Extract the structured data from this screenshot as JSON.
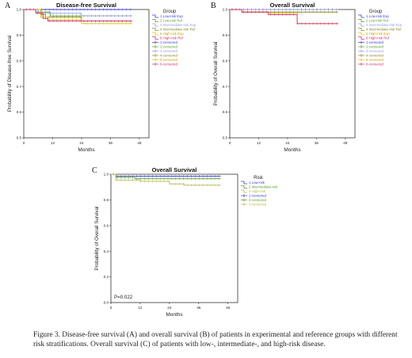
{
  "figure_caption": "Figure 3. Disease-free survival (A) and overall survival (B) of patients in experimental and reference groups with different risk stratifications. Overall survival (C) of patients with low-, intermediate-, and high-risk disease.",
  "colors": {
    "low_exp": "#3b3bd6",
    "low_ref": "#5aa02c",
    "intermediate_exp": "#9a9ae6",
    "intermediate_ref": "#8a8a2a",
    "high_exp": "#e6c200",
    "high_ref": "#d23278",
    "risk_low": "#3b3bd6",
    "risk_intermediate": "#5aa02c",
    "risk_high": "#b8b850"
  },
  "chart_data": [
    {
      "panel_label": "A",
      "type": "line",
      "title": "Disease-free Survival",
      "xlabel": "Months",
      "ylabel": "Probability of Disease-free Survival",
      "x_ticks": [
        "0",
        "12",
        "24",
        "36",
        "48"
      ],
      "y_ticks": [
        "0.5",
        "0.6",
        "0.7",
        "0.8",
        "0.9",
        "1.0"
      ],
      "xlim": [
        0,
        52
      ],
      "ylim": [
        0.5,
        1.0
      ],
      "legend_title": "Group",
      "legend_position": "right",
      "legend": [
        "1 Low-risk Exp",
        "2 Low-risk Ref",
        "3 Intermediate-risk Exp",
        "4 Intermediate-risk Ref",
        "5 High-risk Exp",
        "6 High-risk Ref",
        "1-censored",
        "2-censored",
        "3-censored",
        "4-censored",
        "5-censored",
        "6-censored"
      ],
      "series": [
        {
          "name": "1 Low-risk Exp",
          "color_key": "low_exp",
          "steps": [
            [
              0,
              1.0
            ],
            [
              45,
              1.0
            ]
          ]
        },
        {
          "name": "2 Low-risk Ref",
          "color_key": "low_ref",
          "steps": [
            [
              0,
              1.0
            ],
            [
              5,
              0.99
            ],
            [
              11,
              0.975
            ],
            [
              45,
              0.975
            ]
          ]
        },
        {
          "name": "3 Intermediate-risk Exp",
          "color_key": "intermediate_exp",
          "steps": [
            [
              0,
              1.0
            ],
            [
              6,
              0.985
            ],
            [
              24,
              0.975
            ],
            [
              45,
              0.975
            ]
          ]
        },
        {
          "name": "4 Intermediate-risk Ref",
          "color_key": "intermediate_ref",
          "steps": [
            [
              0,
              1.0
            ],
            [
              7,
              0.98
            ],
            [
              9,
              0.97
            ],
            [
              24,
              0.955
            ],
            [
              45,
              0.955
            ]
          ]
        },
        {
          "name": "5 High-risk Exp",
          "color_key": "high_exp",
          "steps": [
            [
              0,
              1.0
            ],
            [
              7,
              0.97
            ],
            [
              10,
              0.96
            ],
            [
              24,
              0.945
            ],
            [
              45,
              0.945
            ]
          ]
        },
        {
          "name": "6 High-risk Ref",
          "color_key": "high_ref",
          "steps": [
            [
              0,
              1.0
            ],
            [
              5,
              0.985
            ],
            [
              8,
              0.965
            ],
            [
              10,
              0.955
            ],
            [
              45,
              0.955
            ]
          ]
        }
      ]
    },
    {
      "panel_label": "B",
      "type": "line",
      "title": "Overall Survival",
      "xlabel": "Months",
      "ylabel": "Probability of Overall Survival",
      "x_ticks": [
        "0",
        "12",
        "24",
        "36",
        "48"
      ],
      "y_ticks": [
        "0.5",
        "0.6",
        "0.7",
        "0.8",
        "0.9",
        "1.0"
      ],
      "xlim": [
        0,
        52
      ],
      "ylim": [
        0.5,
        1.0
      ],
      "legend_title": "Group",
      "legend_position": "right",
      "legend": [
        "1 Low-risk Exp",
        "2 Low-risk Ref",
        "3 Intermediate-risk Exp",
        "4 Intermediate-risk Ref",
        "5 High-risk Exp",
        "6 High-risk Ref",
        "1-censored",
        "2-censored",
        "3-censored",
        "4-censored",
        "5-censored",
        "6-censored"
      ],
      "series": [
        {
          "name": "1 Low-risk Exp",
          "color_key": "low_exp",
          "steps": [
            [
              0,
              1.0
            ],
            [
              45,
              1.0
            ]
          ]
        },
        {
          "name": "2 Low-risk Ref",
          "color_key": "low_ref",
          "steps": [
            [
              0,
              1.0
            ],
            [
              45,
              1.0
            ]
          ]
        },
        {
          "name": "3 Intermediate-risk Exp",
          "color_key": "intermediate_exp",
          "steps": [
            [
              0,
              1.0
            ],
            [
              45,
              1.0
            ]
          ]
        },
        {
          "name": "4 Intermediate-risk Ref",
          "color_key": "intermediate_ref",
          "steps": [
            [
              0,
              1.0
            ],
            [
              5,
              0.99
            ],
            [
              45,
              0.99
            ]
          ]
        },
        {
          "name": "5 High-risk Exp",
          "color_key": "high_exp",
          "steps": [
            [
              0,
              1.0
            ],
            [
              5,
              0.99
            ],
            [
              16,
              0.985
            ],
            [
              28,
              0.945
            ],
            [
              45,
              0.945
            ]
          ]
        },
        {
          "name": "6 High-risk Ref",
          "color_key": "high_ref",
          "steps": [
            [
              0,
              1.0
            ],
            [
              5,
              0.99
            ],
            [
              16,
              0.98
            ],
            [
              28,
              0.945
            ],
            [
              45,
              0.945
            ]
          ]
        }
      ]
    },
    {
      "panel_label": "C",
      "type": "line",
      "title": "Overall Survival",
      "xlabel": "Months",
      "ylabel": "Probability of Overall Survival",
      "x_ticks": [
        "0",
        "12",
        "24",
        "36",
        "48"
      ],
      "y_ticks": [
        "0.0",
        "0.2",
        "0.4",
        "0.6",
        "0.8",
        "1.0"
      ],
      "xlim": [
        0,
        52
      ],
      "ylim": [
        0.0,
        1.0
      ],
      "legend_title": "Risk",
      "legend_position": "right",
      "legend": [
        "1 Low-risk",
        "2 Intermediate-risk",
        "3 High-risk",
        "1-censored",
        "2-censored",
        "3-censored"
      ],
      "annotation": "P=0.022",
      "series": [
        {
          "name": "1 Low-risk",
          "color_key": "risk_low",
          "steps": [
            [
              0,
              1.0
            ],
            [
              2,
              0.985
            ],
            [
              45,
              0.985
            ]
          ]
        },
        {
          "name": "2 Intermediate-risk",
          "color_key": "risk_intermediate",
          "steps": [
            [
              0,
              1.0
            ],
            [
              2,
              0.975
            ],
            [
              10,
              0.965
            ],
            [
              45,
              0.965
            ]
          ]
        },
        {
          "name": "3 High-risk",
          "color_key": "risk_high",
          "steps": [
            [
              0,
              1.0
            ],
            [
              2,
              0.955
            ],
            [
              12,
              0.945
            ],
            [
              24,
              0.925
            ],
            [
              30,
              0.915
            ],
            [
              45,
              0.915
            ]
          ]
        }
      ]
    }
  ]
}
